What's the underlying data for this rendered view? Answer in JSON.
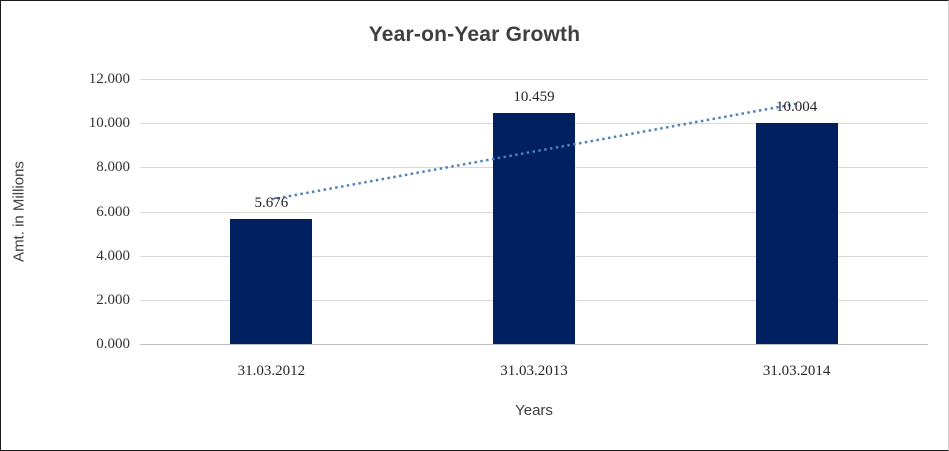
{
  "chart_data": {
    "type": "bar",
    "title": "Year-on-Year Growth",
    "categories": [
      "31.03.2012",
      "31.03.2013",
      "31.03.2014"
    ],
    "values": [
      5.676,
      10.459,
      10.004
    ],
    "data_labels": [
      "5.676",
      "10.459",
      "10.004"
    ],
    "xlabel": "Years",
    "ylabel": "Amt. in Millions",
    "ylim": [
      0,
      12
    ],
    "yticks": [
      {
        "value": 0,
        "label": "0.000"
      },
      {
        "value": 2,
        "label": "2.000"
      },
      {
        "value": 4,
        "label": "4.000"
      },
      {
        "value": 6,
        "label": "6.000"
      },
      {
        "value": 8,
        "label": "8.000"
      },
      {
        "value": 10,
        "label": "10.000"
      },
      {
        "value": 12,
        "label": "12.000"
      }
    ],
    "grid": true,
    "legend": false,
    "bar_color": "#002060",
    "gridline_color": "#d9d9d9",
    "axis_line_color": "#bfbfbf",
    "trendline": {
      "type": "linear",
      "style": "dotted",
      "color": "#4f81bd",
      "start_value": 6.55,
      "end_value": 10.88
    }
  }
}
